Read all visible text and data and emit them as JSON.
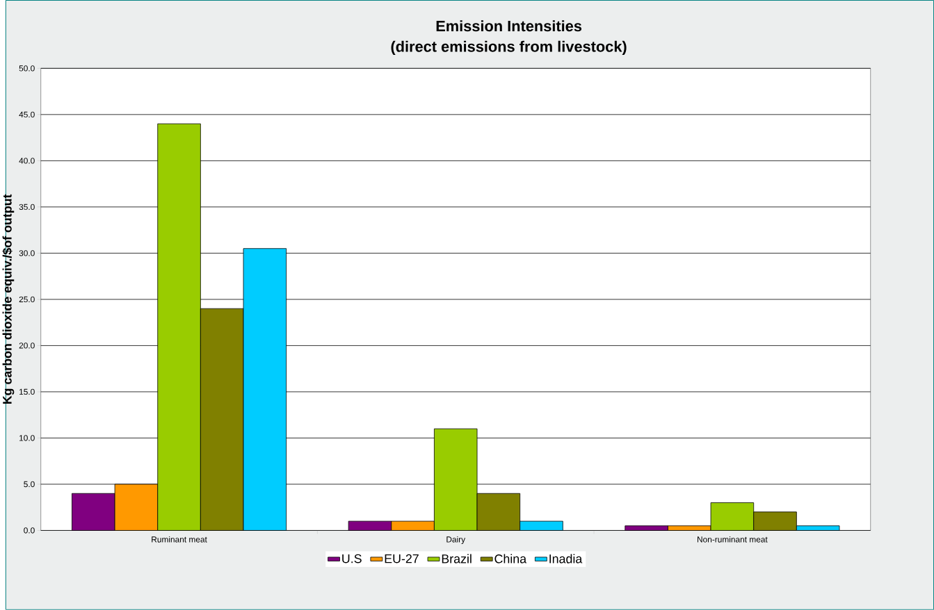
{
  "chart_data": {
    "type": "bar",
    "title": "Emission Intensities",
    "subtitle": "(direct emissions from livestock)",
    "ylabel": "Kg carbon dioxide equiv./$of output",
    "categories": [
      "Ruminant meat",
      "Dairy",
      "Non-ruminant meat"
    ],
    "series": [
      {
        "name": "U.S",
        "color": "#800080",
        "values": [
          4,
          1,
          0.5
        ]
      },
      {
        "name": "EU-27",
        "color": "#ff9900",
        "values": [
          5,
          1,
          0.5
        ]
      },
      {
        "name": "Brazil",
        "color": "#99cc00",
        "values": [
          44,
          11,
          3
        ]
      },
      {
        "name": "China",
        "color": "#808000",
        "values": [
          24,
          4,
          2
        ]
      },
      {
        "name": "Inadia",
        "color": "#00ccff",
        "values": [
          30.5,
          1,
          0.5
        ]
      }
    ],
    "ylim": [
      0,
      50
    ],
    "yticks": [
      {
        "value": 0,
        "label": "0.0"
      },
      {
        "value": 5,
        "label": "5.0"
      },
      {
        "value": 10,
        "label": "10.0"
      },
      {
        "value": 15,
        "label": "15.0"
      },
      {
        "value": 20,
        "label": "20.0"
      },
      {
        "value": 25,
        "label": "25.0"
      },
      {
        "value": 30,
        "label": "30.0"
      },
      {
        "value": 35,
        "label": "35.0"
      },
      {
        "value": 40,
        "label": "40.0"
      },
      {
        "value": 45,
        "label": "45.0"
      },
      {
        "value": 50,
        "label": "50.0"
      }
    ],
    "grid": "y",
    "legend": "bottom"
  }
}
